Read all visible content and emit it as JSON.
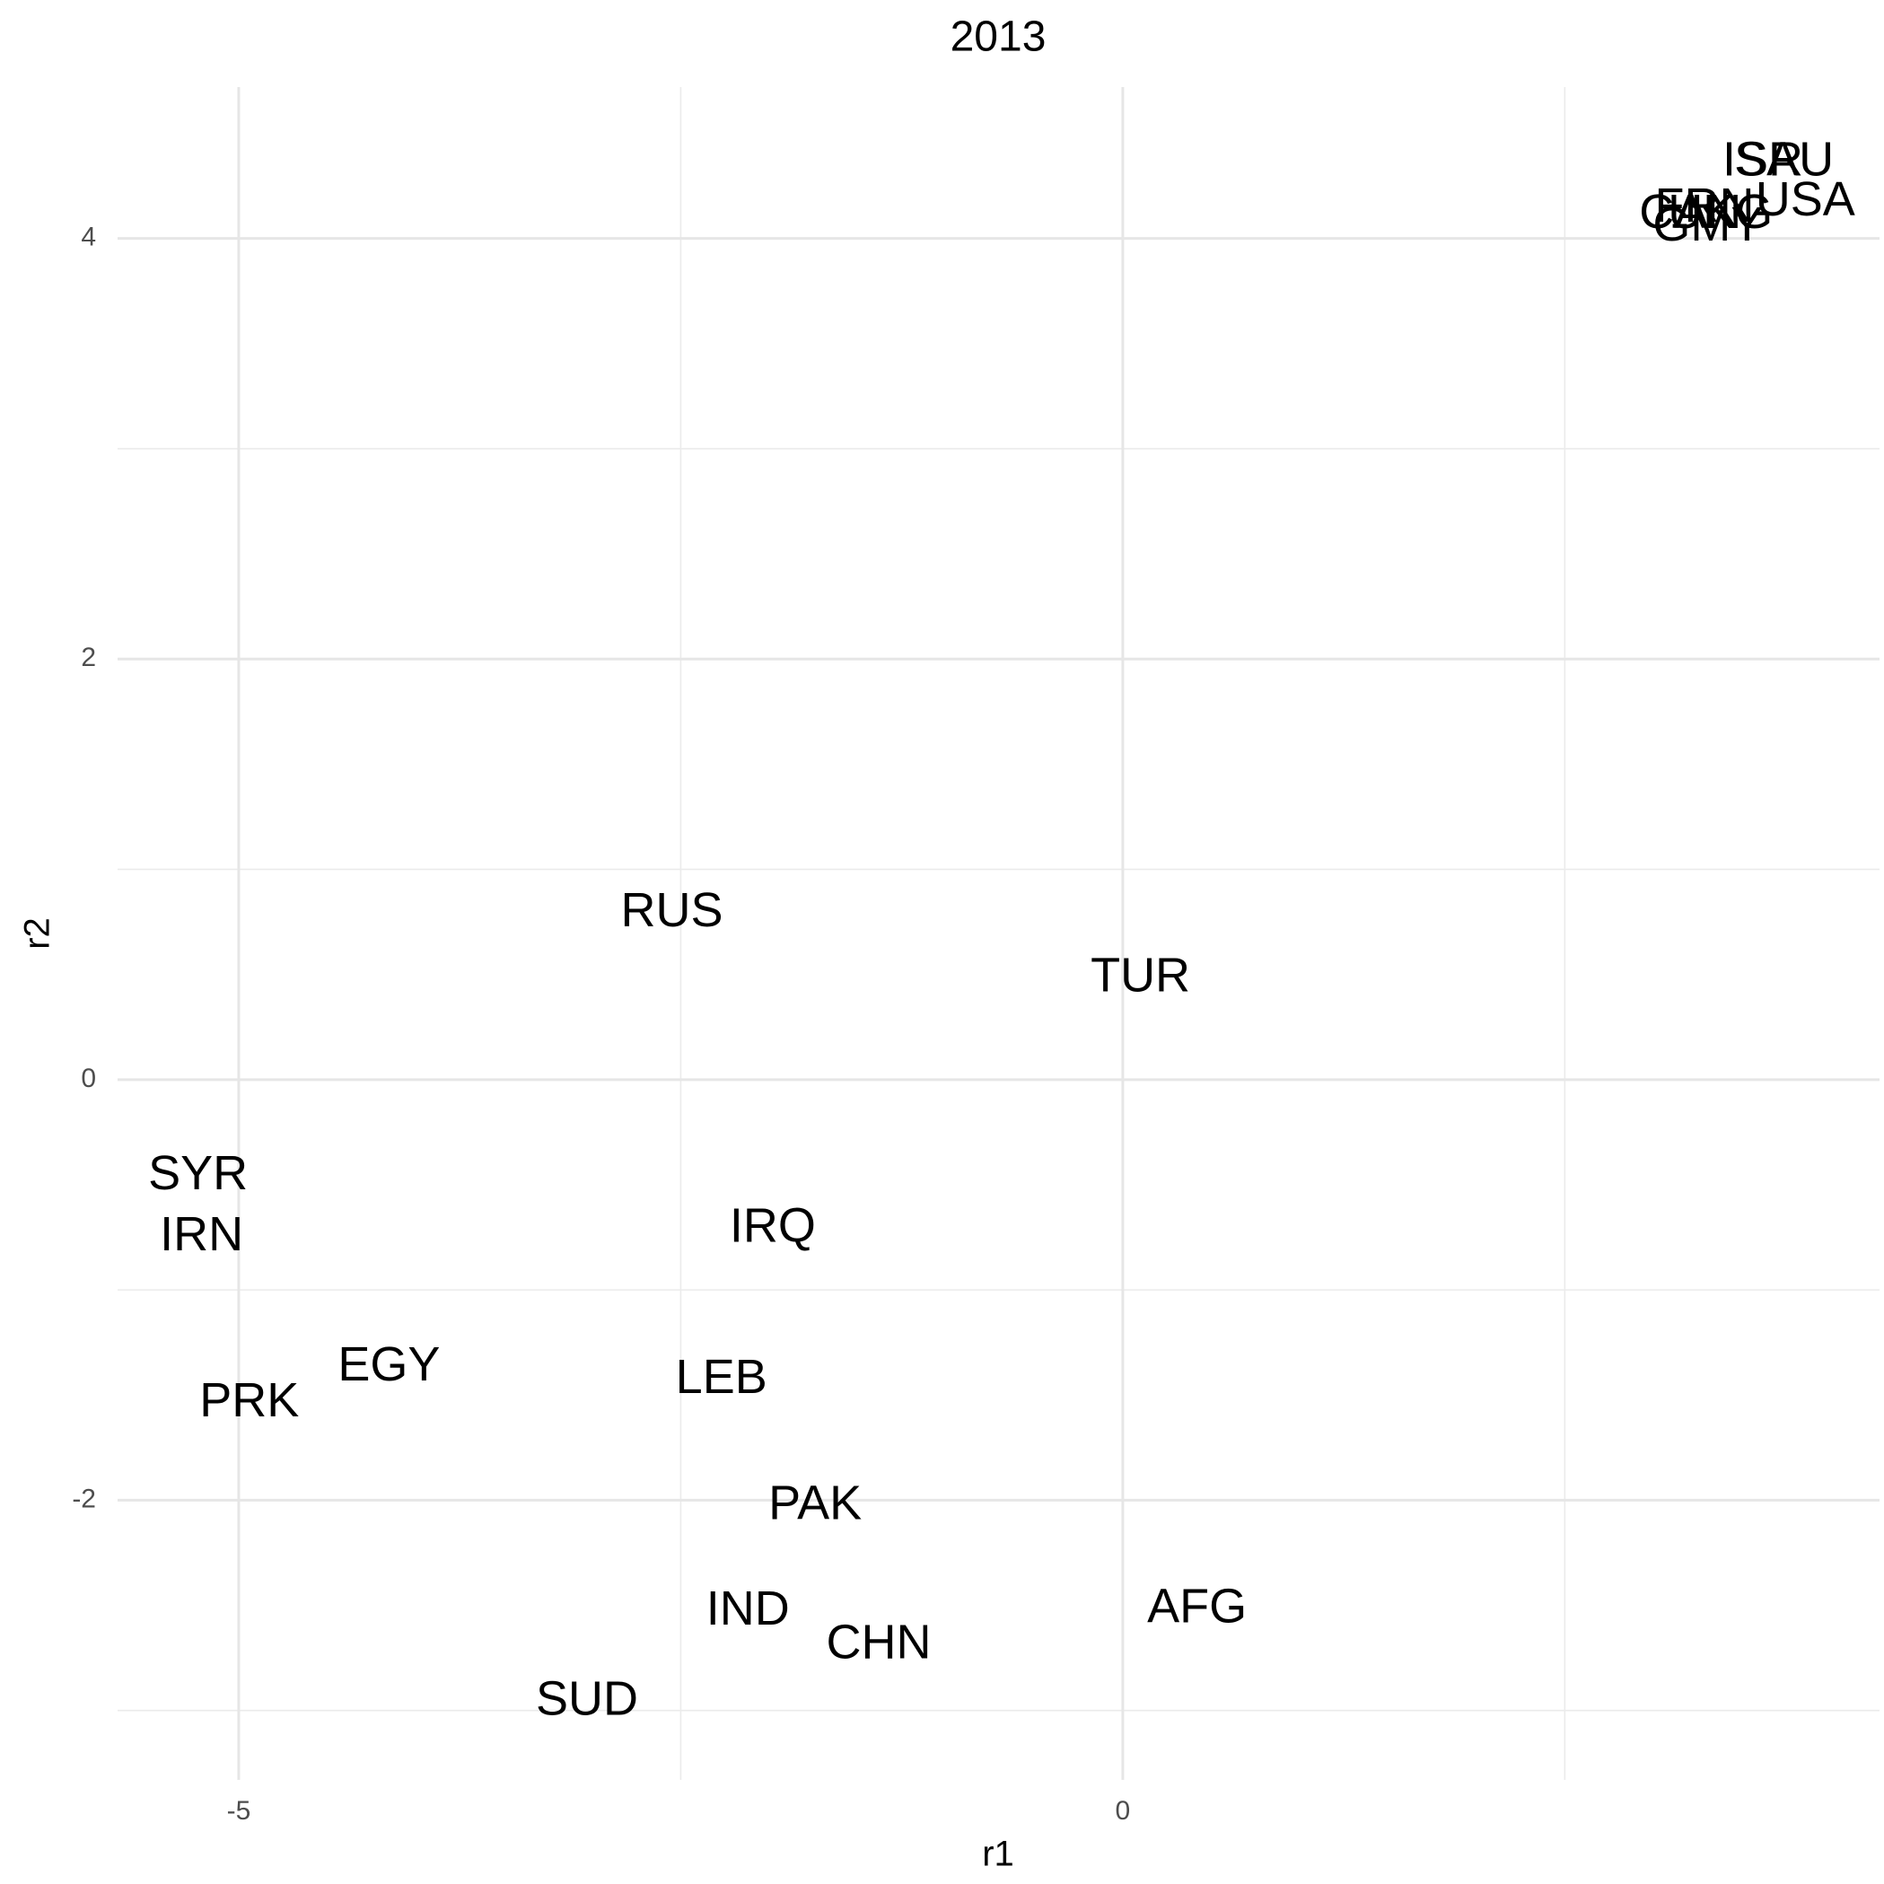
{
  "chart_data": {
    "type": "scatter",
    "title": "2013",
    "x_label": "r1",
    "y_label": "r2",
    "labels": [
      "SYR",
      "IRN",
      "PRK",
      "EGY",
      "RUS",
      "TUR",
      "IRQ",
      "LEB",
      "PAK",
      "IND",
      "CHN",
      "AFG",
      "SUD",
      "ISR",
      "SAU",
      "USA",
      "CAN",
      "FRN",
      "UKG",
      "GMY"
    ],
    "x": [
      -5.23,
      -5.21,
      -4.94,
      -4.15,
      -2.55,
      0.1,
      -1.98,
      -2.27,
      -1.74,
      -2.12,
      -1.38,
      0.42,
      -3.03,
      3.62,
      3.74,
      3.86,
      3.21,
      3.29,
      3.38,
      3.31
    ],
    "values": [
      -0.46,
      -0.75,
      -1.54,
      -1.37,
      0.79,
      0.48,
      -0.71,
      -1.43,
      -2.03,
      -2.53,
      -2.69,
      -2.52,
      -2.96,
      4.36,
      4.36,
      4.17,
      4.11,
      4.14,
      4.11,
      4.05
    ],
    "color": "#000000",
    "xlim": [
      -5.685,
      4.28
    ],
    "ylim": [
      -3.33,
      4.72
    ],
    "xticks": [
      -5,
      0
    ],
    "yticks": [
      -2,
      0,
      2,
      4
    ],
    "x_minor_grid": [
      -2.5,
      2.5
    ],
    "y_minor_grid": [
      -3,
      -1,
      1,
      3
    ],
    "grid": true
  }
}
